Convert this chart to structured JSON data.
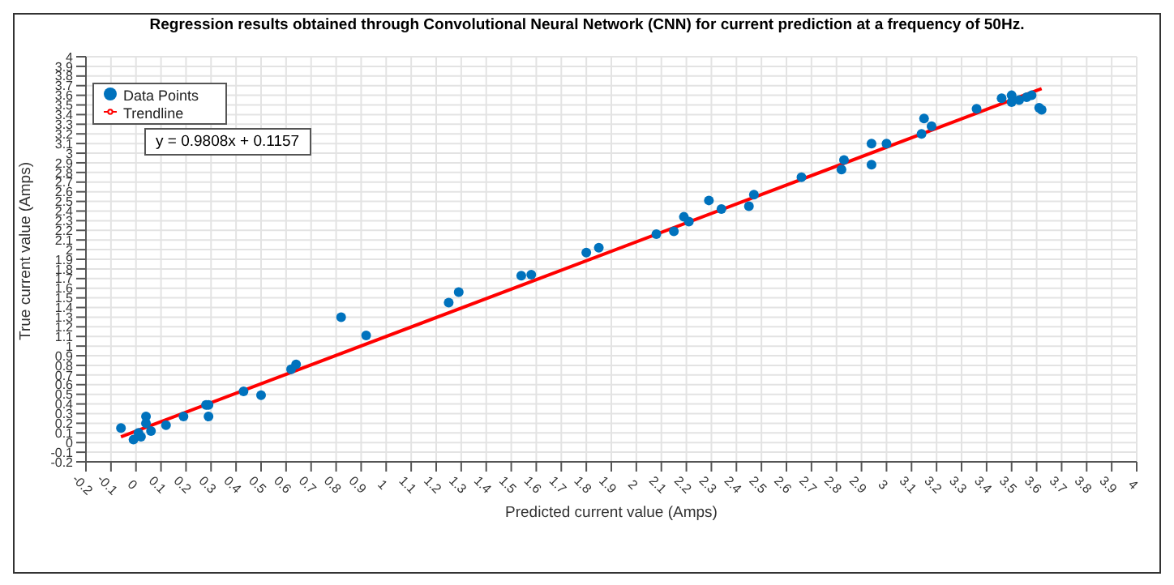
{
  "chart_data": {
    "type": "scatter",
    "title": "Regression results obtained through Convolutional Neural Network (CNN) for current prediction at a frequency of 50Hz.",
    "xlabel": "Predicted current value (Amps)",
    "ylabel": "True current value (Amps)",
    "annotations": [
      "y = 0.9808x + 0.1157"
    ],
    "series": [
      {
        "name": "Data Points",
        "color": "#0072bd",
        "marker": "circle",
        "x": [
          -0.06,
          -0.01,
          0.01,
          0.02,
          0.04,
          0.04,
          0.06,
          0.12,
          0.19,
          0.28,
          0.29,
          0.29,
          0.43,
          0.5,
          0.62,
          0.64,
          0.82,
          0.92,
          1.25,
          1.29,
          1.54,
          1.58,
          1.8,
          1.85,
          2.08,
          2.15,
          2.19,
          2.21,
          2.29,
          2.34,
          2.45,
          2.47,
          2.66,
          2.82,
          2.83,
          2.94,
          2.94,
          3.0,
          3.14,
          3.15,
          3.18,
          3.36,
          3.46,
          3.5,
          3.5,
          3.53,
          3.56,
          3.58,
          3.61,
          3.62
        ],
        "values": [
          0.15,
          0.03,
          0.1,
          0.06,
          0.27,
          0.2,
          0.12,
          0.18,
          0.27,
          0.39,
          0.39,
          0.27,
          0.53,
          0.49,
          0.76,
          0.81,
          1.3,
          1.11,
          1.45,
          1.56,
          1.73,
          1.74,
          1.97,
          2.02,
          2.16,
          2.19,
          2.34,
          2.29,
          2.51,
          2.42,
          2.45,
          2.57,
          2.75,
          2.83,
          2.93,
          3.1,
          2.88,
          3.1,
          3.2,
          3.36,
          3.28,
          3.46,
          3.57,
          3.6,
          3.53,
          3.55,
          3.58,
          3.6,
          3.47,
          3.45
        ]
      },
      {
        "name": "Trendline",
        "type": "line",
        "color": "#ff0000",
        "marker": "none",
        "line_style": "solid",
        "x": [
          -0.06,
          3.62
        ],
        "values": [
          0.06,
          3.67
        ]
      }
    ],
    "xlim": [
      -0.2,
      4
    ],
    "ylim": [
      -0.2,
      4
    ],
    "xticks": [
      -0.2,
      -0.1,
      0,
      0.1,
      0.2,
      0.3,
      0.4,
      0.5,
      0.6,
      0.7,
      0.8,
      0.9,
      1,
      1.1,
      1.2,
      1.3,
      1.4,
      1.5,
      1.6,
      1.7,
      1.8,
      1.9,
      2,
      2.1,
      2.2,
      2.3,
      2.4,
      2.5,
      2.6,
      2.7,
      2.8,
      2.9,
      3,
      3.1,
      3.2,
      3.3,
      3.4,
      3.5,
      3.6,
      3.7,
      3.8,
      3.9,
      4
    ],
    "yticks": [
      -0.2,
      -0.1,
      0,
      0.1,
      0.2,
      0.3,
      0.4,
      0.5,
      0.6,
      0.7,
      0.8,
      0.9,
      1,
      1.1,
      1.2,
      1.3,
      1.4,
      1.5,
      1.6,
      1.7,
      1.8,
      1.9,
      2,
      2.1,
      2.2,
      2.3,
      2.4,
      2.5,
      2.6,
      2.7,
      2.8,
      2.9,
      3,
      3.1,
      3.2,
      3.3,
      3.4,
      3.5,
      3.6,
      3.7,
      3.8,
      3.9,
      4
    ],
    "grid": true,
    "legend": "top left"
  }
}
